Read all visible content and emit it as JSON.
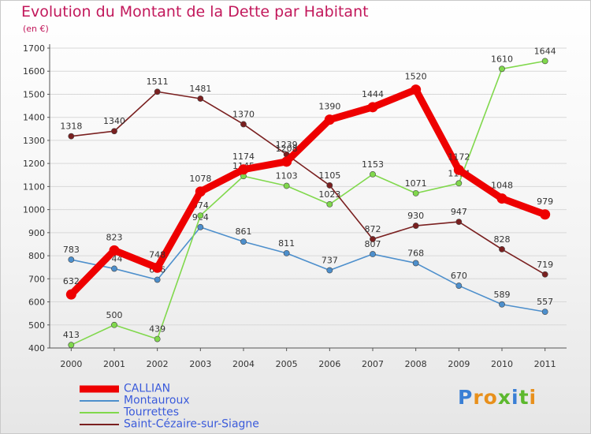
{
  "chart_data": {
    "type": "line",
    "title": "Evolution du Montant de la Dette par Habitant",
    "subtitle": "(en €)",
    "xlabel": "",
    "ylabel": "",
    "ylim": [
      400,
      1700
    ],
    "ytick_step": 100,
    "grid": "horizontal",
    "legend_position": "bottom-left",
    "x": [
      "2000",
      "2001",
      "2002",
      "2003",
      "2004",
      "2005",
      "2006",
      "2007",
      "2008",
      "2009",
      "2010",
      "2011"
    ],
    "series": [
      {
        "name": "CALLIAN",
        "color": "#ee0000",
        "values": [
          632,
          823,
          748,
          1078,
          1174,
          1208,
          1390,
          1444,
          1520,
          1172,
          1048,
          979
        ],
        "highlight": true
      },
      {
        "name": "Montauroux",
        "color": "#4d8fcc",
        "values": [
          783,
          744,
          696,
          924,
          861,
          811,
          737,
          807,
          768,
          670,
          589,
          557
        ]
      },
      {
        "name": "Tourrettes",
        "color": "#80d84c",
        "values": [
          413,
          500,
          439,
          974,
          1145,
          1103,
          1023,
          1153,
          1071,
          1114,
          1610,
          1644
        ]
      },
      {
        "name": "Saint-Cézaire-sur-Siagne",
        "color": "#7a2020",
        "values": [
          1318,
          1340,
          1511,
          1481,
          1370,
          1239,
          1105,
          872,
          930,
          947,
          828,
          719
        ]
      }
    ]
  },
  "brand": {
    "name": "Proxiti",
    "colors": [
      "#3a7fd5",
      "#e8901c",
      "#e8901c",
      "#5cb82e",
      "#3a7fd5",
      "#5cb82e",
      "#e8901c"
    ]
  }
}
